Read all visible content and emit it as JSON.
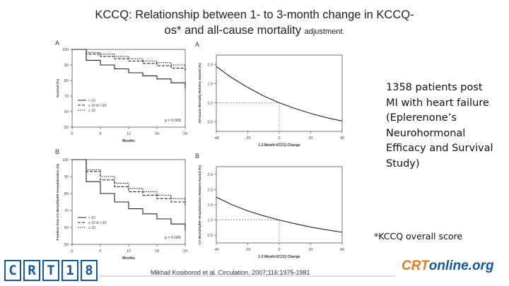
{
  "title": {
    "line1": "KCCQ: Relationship between 1- to 3-month change in KCCQ-",
    "line2_main": "os* and all-cause mortality ",
    "line2_small": "adjustment."
  },
  "note": {
    "lines": [
      "1358 patients post",
      "MI with heart failure",
      "(Eplerenone’s",
      "Neurohormonal",
      "Efficacy and Survival",
      "Study)"
    ]
  },
  "footnote": "*KCCQ overall score",
  "citation": "Mikhail Kosiborod et al. Circulation. 2007;116:1975-1981",
  "logos": {
    "crt_chars": [
      "C",
      "R",
      "T",
      "1",
      "8"
    ],
    "online_prefix": "CRT",
    "online_suffix": "online.org"
  },
  "colors": {
    "line": "#222222",
    "ref": "#777777",
    "brand": "#15579a",
    "accent": "#e07b1f"
  },
  "chart_data": [
    {
      "type": "line",
      "panel_label": "A",
      "title": "",
      "xlabel": "Months",
      "ylabel": "Survival (%)",
      "xlim": [
        0,
        24
      ],
      "ylim": [
        50,
        100
      ],
      "xticks": [
        0,
        6,
        12,
        18,
        24
      ],
      "yticks": [
        50,
        60,
        70,
        80,
        90,
        100
      ],
      "x": [
        0,
        3,
        6,
        9,
        12,
        15,
        18,
        21,
        24
      ],
      "series": [
        {
          "name": "< 10",
          "dash": "solid",
          "values": [
            100,
            93,
            90,
            87.5,
            85,
            83,
            81,
            78.5,
            75
          ]
        },
        {
          "name": "≥ 10 to <10",
          "dash": "dashed",
          "values": [
            100,
            97,
            95.5,
            94,
            92.5,
            91,
            89.5,
            88,
            86
          ]
        },
        {
          "name": "≥ 10",
          "dash": "dotted",
          "values": [
            100,
            98,
            97,
            95.5,
            94,
            92.5,
            91.5,
            90,
            88.5
          ]
        }
      ],
      "annotation": "p = 0.005"
    },
    {
      "type": "line",
      "panel_label": "A",
      "title": "",
      "xlabel": "1-3 Month KCCQ Change",
      "ylabel": "All-Cause Mortality Relative Hazard (%)",
      "xlim": [
        -40,
        40
      ],
      "ylim": [
        0.25,
        2.25
      ],
      "xticks": [
        -40,
        -20,
        0,
        20,
        40
      ],
      "yticks": [
        0.5,
        1.0,
        1.5,
        2.0
      ],
      "x": [
        -40,
        -30,
        -20,
        -10,
        0,
        10,
        20,
        30,
        40
      ],
      "series": [
        {
          "name": "Relative hazard",
          "dash": "solid",
          "values": [
            1.95,
            1.65,
            1.4,
            1.18,
            1.0,
            0.85,
            0.72,
            0.61,
            0.52
          ]
        }
      ],
      "reference": {
        "x": 0,
        "y": 1.0
      }
    },
    {
      "type": "line",
      "panel_label": "B",
      "title": "",
      "xlabel": "Months",
      "ylabel": "Freedom from CV Mortality/HF Hospitalization (%)",
      "xlim": [
        0,
        24
      ],
      "ylim": [
        50,
        100
      ],
      "xticks": [
        0,
        6,
        12,
        18,
        24
      ],
      "yticks": [
        50,
        60,
        70,
        80,
        90,
        100
      ],
      "x": [
        0,
        3,
        6,
        9,
        12,
        15,
        18,
        21,
        24
      ],
      "series": [
        {
          "name": "< 10",
          "dash": "solid",
          "values": [
            100,
            87,
            80,
            75,
            71,
            68,
            65,
            62,
            58
          ]
        },
        {
          "name": "≥ 10 to <10",
          "dash": "dashed",
          "values": [
            100,
            93,
            88,
            84,
            81,
            79,
            77,
            75,
            73
          ]
        },
        {
          "name": "≥ 10",
          "dash": "dotted",
          "values": [
            100,
            94,
            90,
            86,
            83,
            81,
            79,
            77,
            75
          ]
        }
      ],
      "annotation": "p = 0.005"
    },
    {
      "type": "line",
      "panel_label": "B",
      "title": "",
      "xlabel": "1-3 Month KCCQ Change",
      "ylabel": "CV Mortality/HF Hospitalization Relative Hazard (%)",
      "xlim": [
        -40,
        40
      ],
      "ylim": [
        0.25,
        2.75
      ],
      "xticks": [
        -40,
        -20,
        0,
        20,
        40
      ],
      "yticks": [
        0.5,
        1.0,
        1.5,
        2.0,
        2.5
      ],
      "x": [
        -40,
        -30,
        -20,
        -10,
        0,
        10,
        20,
        30,
        40
      ],
      "series": [
        {
          "name": "Relative hazard",
          "dash": "solid",
          "values": [
            1.75,
            1.5,
            1.3,
            1.14,
            1.0,
            0.88,
            0.77,
            0.68,
            0.6
          ]
        }
      ],
      "reference": {
        "x": 0,
        "y": 1.0
      }
    }
  ]
}
